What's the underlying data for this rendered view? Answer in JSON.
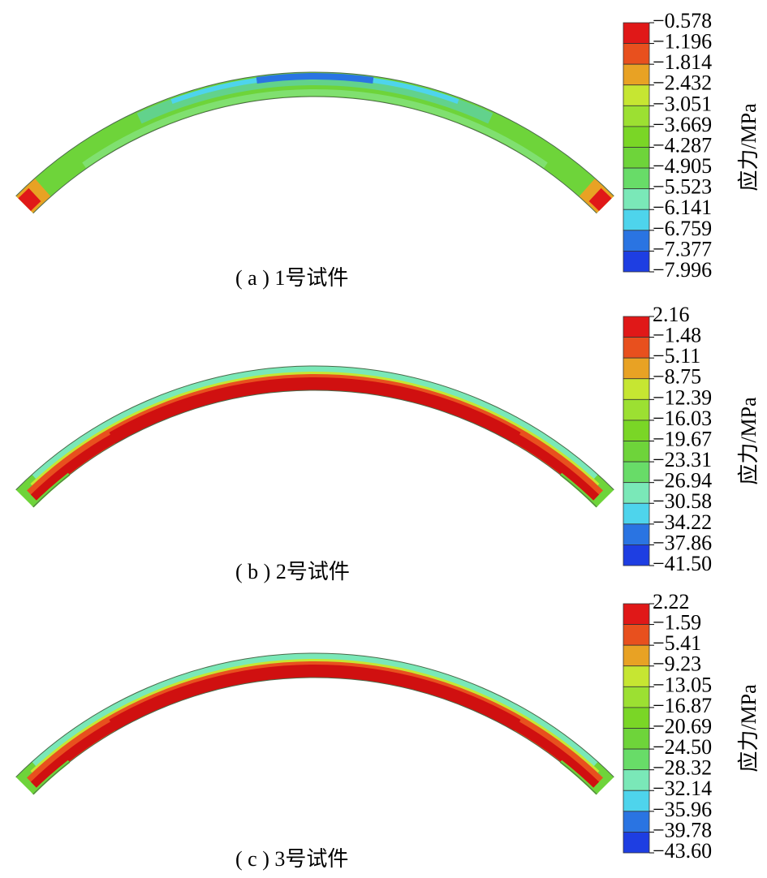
{
  "panels": [
    {
      "caption": "( a ) 1号试件",
      "colorbar": {
        "title": "应力/MPa",
        "labels": [
          "−0.578",
          "−1.196",
          "−1.814",
          "−2.432",
          "−3.051",
          "−3.669",
          "−4.287",
          "−4.905",
          "−5.523",
          "−6.141",
          "−6.759",
          "−7.377",
          "−7.996"
        ]
      }
    },
    {
      "caption": "( b ) 2号试件",
      "colorbar": {
        "title": "应力/MPa",
        "labels": [
          "2.16",
          "−1.48",
          "−5.11",
          "−8.75",
          "−12.39",
          "−16.03",
          "−19.67",
          "−23.31",
          "−26.94",
          "−30.58",
          "−34.22",
          "−37.86",
          "−41.50"
        ]
      }
    },
    {
      "caption": "( c ) 3号试件",
      "colorbar": {
        "title": "应力/MPa",
        "labels": [
          "2.22",
          "−1.59",
          "−5.41",
          "−9.23",
          "−13.05",
          "−16.87",
          "−20.69",
          "−24.50",
          "−28.32",
          "−32.14",
          "−35.96",
          "−39.78",
          "−43.60"
        ]
      }
    }
  ]
}
